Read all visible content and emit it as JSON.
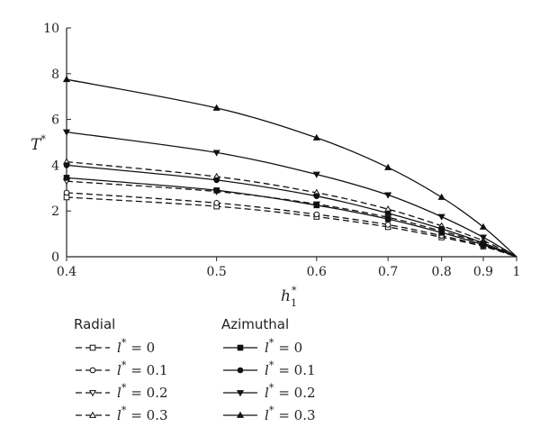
{
  "chart_data": {
    "type": "line",
    "title": "",
    "xlabel": "h",
    "xlabel_sub": "1",
    "xlabel_sup": "*",
    "ylabel": "T",
    "ylabel_sup": "*",
    "xscale": "reciprocal",
    "xlim": [
      0.4,
      1
    ],
    "ylim": [
      0,
      10
    ],
    "x_ticks": [
      0.4,
      0.5,
      0.6,
      0.7,
      0.8,
      0.9,
      1
    ],
    "x_tick_labels": [
      "0.4",
      "0.5",
      "0.6",
      "0.7",
      "0.8",
      "0.9",
      "1"
    ],
    "y_ticks": [
      0,
      2,
      4,
      6,
      8,
      10
    ],
    "y_tick_labels": [
      "0",
      "2",
      "4",
      "6",
      "8",
      "10"
    ],
    "grid": false,
    "legend_position": "bottom",
    "x": [
      0.4,
      0.5,
      0.6,
      0.7,
      0.8,
      0.9,
      1.0
    ],
    "legend": {
      "radial_title": "Radial",
      "azimuthal_title": "Azimuthal",
      "entry_prefix": "l",
      "entry_sup": "*",
      "entry_eq": "= "
    },
    "series": [
      {
        "group": "Radial",
        "name": "0",
        "style": "dashed",
        "marker": "square-open",
        "values": [
          2.6,
          2.2,
          1.75,
          1.3,
          0.85,
          0.45,
          0.0
        ]
      },
      {
        "group": "Radial",
        "name": "0.1",
        "style": "dashed",
        "marker": "circle-open",
        "values": [
          2.8,
          2.35,
          1.85,
          1.4,
          0.92,
          0.48,
          0.0
        ]
      },
      {
        "group": "Radial",
        "name": "0.2",
        "style": "dashed",
        "marker": "triangle-down-open",
        "values": [
          3.3,
          2.85,
          2.3,
          1.72,
          1.12,
          0.58,
          0.0
        ]
      },
      {
        "group": "Radial",
        "name": "0.3",
        "style": "dashed",
        "marker": "triangle-up-open",
        "values": [
          4.15,
          3.5,
          2.8,
          2.08,
          1.35,
          0.7,
          0.0
        ]
      },
      {
        "group": "Azimuthal",
        "name": "0",
        "style": "solid",
        "marker": "square-filled",
        "values": [
          3.45,
          2.9,
          2.25,
          1.65,
          1.05,
          0.52,
          0.0
        ]
      },
      {
        "group": "Azimuthal",
        "name": "0.1",
        "style": "solid",
        "marker": "circle-filled",
        "values": [
          4.0,
          3.35,
          2.65,
          1.9,
          1.22,
          0.6,
          0.0
        ]
      },
      {
        "group": "Azimuthal",
        "name": "0.2",
        "style": "solid",
        "marker": "triangle-down-filled",
        "values": [
          5.45,
          4.55,
          3.6,
          2.7,
          1.75,
          0.85,
          0.0
        ]
      },
      {
        "group": "Azimuthal",
        "name": "0.3",
        "style": "solid",
        "marker": "triangle-up-filled",
        "values": [
          7.75,
          6.5,
          5.2,
          3.9,
          2.6,
          1.3,
          0.0
        ]
      }
    ]
  }
}
